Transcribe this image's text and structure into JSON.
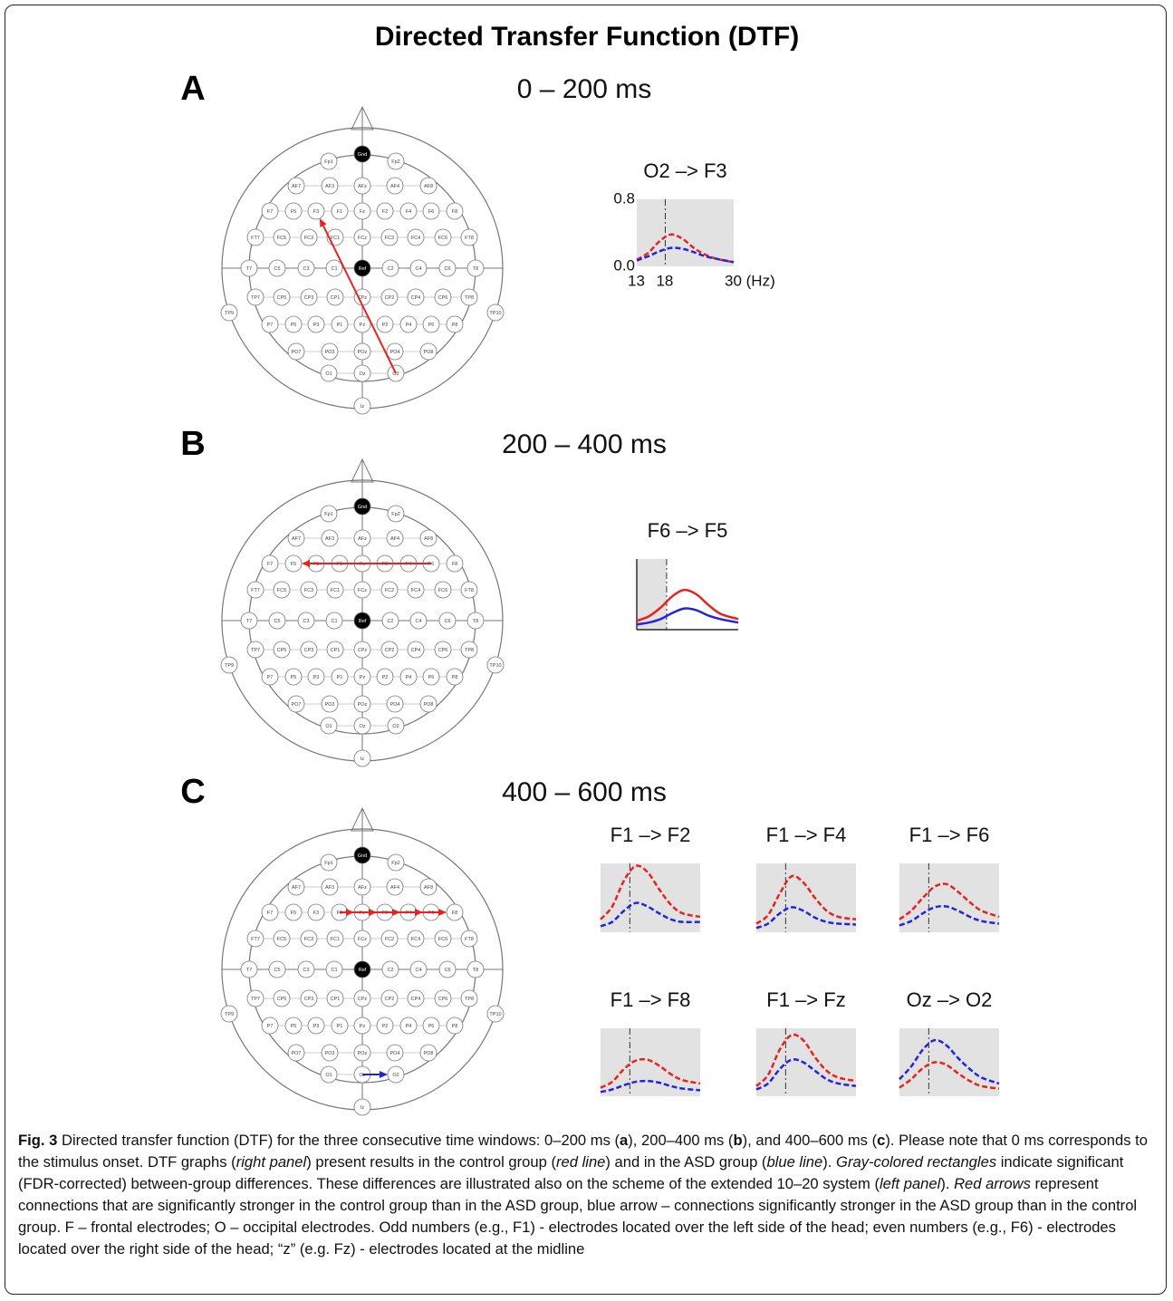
{
  "title": "Directed Transfer Function (DTF)",
  "montage": {
    "rows": [
      [
        "Gnd"
      ],
      [
        "Fp1",
        "Fp2"
      ],
      [
        "AF7",
        "AF3",
        "AFz",
        "AF4",
        "AF8"
      ],
      [
        "F7",
        "F5",
        "F3",
        "F1",
        "Fz",
        "F2",
        "F4",
        "F6",
        "F8"
      ],
      [
        "FT7",
        "FC5",
        "FC3",
        "FC1",
        "FCz",
        "FC2",
        "FC4",
        "FC6",
        "FT8"
      ],
      [
        "T7",
        "C5",
        "C3",
        "C1",
        "Ref",
        "C2",
        "C4",
        "C6",
        "T8"
      ],
      [
        "TP7",
        "CP5",
        "CP3",
        "CP1",
        "CPz",
        "CP2",
        "CP4",
        "CP6",
        "TP8"
      ],
      [
        "TP9",
        "TP10"
      ],
      [
        "P7",
        "P5",
        "P3",
        "P1",
        "Pz",
        "P2",
        "P4",
        "P6",
        "P8"
      ],
      [
        "PO7",
        "PO3",
        "POz",
        "PO4",
        "PO8"
      ],
      [
        "O1",
        "Oz",
        "O2"
      ],
      [
        "Iz"
      ]
    ],
    "filled": [
      "Gnd",
      "Ref"
    ]
  },
  "panels": [
    {
      "letter": "A",
      "window": "0 – 200 ms",
      "arrows": [
        {
          "from": "O2",
          "to": "F3",
          "color": "#e8231f"
        }
      ],
      "graphs": [
        {
          "type": "line",
          "title": "O2 –> F3",
          "x": [
            13,
            15,
            17,
            19,
            21,
            23,
            25,
            27,
            30
          ],
          "xlim": [
            13,
            30
          ],
          "ylim": [
            0,
            0.8
          ],
          "xticks": [
            13,
            18,
            {
              "value": 30,
              "label": "30 (Hz)"
            }
          ],
          "yticks": [
            0.8,
            {
              "value": 0,
              "label": "0.0"
            }
          ],
          "shade": [
            13,
            30
          ],
          "marker_x": 18,
          "line_style": "dashed",
          "frame": false,
          "series": [
            {
              "color": "#e8231f",
              "values": [
                0.08,
                0.16,
                0.3,
                0.38,
                0.33,
                0.22,
                0.14,
                0.09,
                0.05
              ]
            },
            {
              "color": "#2323e0",
              "values": [
                0.07,
                0.12,
                0.18,
                0.22,
                0.21,
                0.17,
                0.12,
                0.09,
                0.05
              ]
            }
          ]
        }
      ]
    },
    {
      "letter": "B",
      "window": "200 – 400 ms",
      "arrows": [
        {
          "from": "F6",
          "to": "F5",
          "color": "#e8231f"
        }
      ],
      "graphs": [
        {
          "type": "line",
          "title": "F6 –> F5",
          "x": [
            13,
            15,
            17,
            19,
            21,
            23,
            25,
            27,
            30
          ],
          "xlim": [
            13,
            30
          ],
          "ylim": [
            0,
            0.8
          ],
          "shade": [
            13,
            18
          ],
          "marker_x": 18,
          "line_style": "solid",
          "frame": true,
          "series": [
            {
              "color": "#e8231f",
              "values": [
                0.1,
                0.15,
                0.25,
                0.38,
                0.45,
                0.4,
                0.28,
                0.18,
                0.12
              ]
            },
            {
              "color": "#2323e0",
              "values": [
                0.06,
                0.08,
                0.12,
                0.19,
                0.24,
                0.22,
                0.16,
                0.12,
                0.08
              ]
            }
          ]
        }
      ]
    },
    {
      "letter": "C",
      "window": "400 – 600 ms",
      "arrows": [
        {
          "from": "F1",
          "to": "F2",
          "color": "#e8231f"
        },
        {
          "from": "F1",
          "to": "F4",
          "color": "#e8231f"
        },
        {
          "from": "F1",
          "to": "F6",
          "color": "#e8231f"
        },
        {
          "from": "F1",
          "to": "F8",
          "color": "#e8231f"
        },
        {
          "from": "F1",
          "to": "Fz",
          "color": "#e8231f"
        },
        {
          "from": "Oz",
          "to": "O2",
          "color": "#2323e0"
        }
      ],
      "graphs": [
        {
          "type": "line",
          "title": "F1 –> F2",
          "x": [
            13,
            15,
            17,
            19,
            21,
            23,
            25,
            27,
            30
          ],
          "xlim": [
            13,
            30
          ],
          "ylim": [
            0,
            0.8
          ],
          "shade": [
            13,
            30
          ],
          "marker_x": 18,
          "line_style": "dashed",
          "frame": false,
          "series": [
            {
              "color": "#e8231f",
              "values": [
                0.15,
                0.3,
                0.6,
                0.77,
                0.7,
                0.5,
                0.32,
                0.22,
                0.18
              ]
            },
            {
              "color": "#2323e0",
              "values": [
                0.07,
                0.12,
                0.25,
                0.34,
                0.3,
                0.22,
                0.15,
                0.12,
                0.12
              ]
            }
          ]
        },
        {
          "type": "line",
          "title": "F1 –> F4",
          "x": [
            13,
            15,
            17,
            19,
            21,
            23,
            25,
            27,
            30
          ],
          "xlim": [
            13,
            30
          ],
          "ylim": [
            0,
            0.8
          ],
          "shade": [
            13,
            30
          ],
          "marker_x": 18,
          "line_style": "dashed",
          "frame": false,
          "series": [
            {
              "color": "#e8231f",
              "values": [
                0.1,
                0.2,
                0.45,
                0.65,
                0.58,
                0.4,
                0.25,
                0.18,
                0.15
              ]
            },
            {
              "color": "#2323e0",
              "values": [
                0.05,
                0.1,
                0.22,
                0.29,
                0.25,
                0.17,
                0.12,
                0.1,
                0.09
              ]
            }
          ]
        },
        {
          "type": "line",
          "title": "F1 –> F6",
          "x": [
            13,
            15,
            17,
            19,
            21,
            23,
            25,
            27,
            30
          ],
          "xlim": [
            13,
            30
          ],
          "ylim": [
            0,
            0.8
          ],
          "shade": [
            13,
            30
          ],
          "marker_x": 18,
          "line_style": "dashed",
          "frame": false,
          "series": [
            {
              "color": "#e8231f",
              "values": [
                0.15,
                0.25,
                0.4,
                0.53,
                0.56,
                0.47,
                0.35,
                0.25,
                0.18
              ]
            },
            {
              "color": "#2323e0",
              "values": [
                0.08,
                0.13,
                0.22,
                0.29,
                0.3,
                0.25,
                0.18,
                0.13,
                0.1
              ]
            }
          ]
        },
        {
          "type": "line",
          "title": "F1 –> F8",
          "x": [
            13,
            15,
            17,
            19,
            21,
            23,
            25,
            27,
            30
          ],
          "xlim": [
            13,
            30
          ],
          "ylim": [
            0,
            0.8
          ],
          "shade": [
            13,
            30
          ],
          "marker_x": 18,
          "line_style": "dashed",
          "frame": false,
          "series": [
            {
              "color": "#e8231f",
              "values": [
                0.1,
                0.17,
                0.32,
                0.42,
                0.43,
                0.36,
                0.26,
                0.19,
                0.15
              ]
            },
            {
              "color": "#2323e0",
              "values": [
                0.05,
                0.08,
                0.13,
                0.17,
                0.18,
                0.16,
                0.12,
                0.09,
                0.07
              ]
            }
          ]
        },
        {
          "type": "line",
          "title": "F1 –> Fz",
          "x": [
            13,
            15,
            17,
            19,
            21,
            23,
            25,
            27,
            30
          ],
          "xlim": [
            13,
            30
          ],
          "ylim": [
            0,
            0.8
          ],
          "shade": [
            13,
            30
          ],
          "marker_x": 18,
          "line_style": "dashed",
          "frame": false,
          "series": [
            {
              "color": "#e8231f",
              "values": [
                0.12,
                0.25,
                0.55,
                0.72,
                0.66,
                0.46,
                0.3,
                0.22,
                0.18
              ]
            },
            {
              "color": "#2323e0",
              "values": [
                0.08,
                0.15,
                0.32,
                0.43,
                0.4,
                0.3,
                0.2,
                0.15,
                0.12
              ]
            }
          ]
        },
        {
          "type": "line",
          "title": "Oz –> O2",
          "x": [
            13,
            15,
            17,
            19,
            21,
            23,
            25,
            27,
            30
          ],
          "xlim": [
            13,
            30
          ],
          "ylim": [
            0,
            0.8
          ],
          "shade": [
            13,
            30
          ],
          "marker_x": 18,
          "line_style": "dashed",
          "frame": false,
          "series": [
            {
              "color": "#2323e0",
              "values": [
                0.2,
                0.35,
                0.55,
                0.66,
                0.6,
                0.45,
                0.32,
                0.22,
                0.15
              ]
            },
            {
              "color": "#e8231f",
              "values": [
                0.1,
                0.2,
                0.33,
                0.4,
                0.37,
                0.27,
                0.18,
                0.12,
                0.09
              ]
            }
          ]
        }
      ]
    }
  ],
  "caption": [
    {
      "text": "Fig. 3",
      "style": "bold"
    },
    {
      "text": " Directed transfer function (DTF) for the three consecutive time windows: 0–200 ms (",
      "style": "normal"
    },
    {
      "text": "a",
      "style": "bold"
    },
    {
      "text": "), 200–400 ms (",
      "style": "normal"
    },
    {
      "text": "b",
      "style": "bold"
    },
    {
      "text": "), and 400–600 ms (",
      "style": "normal"
    },
    {
      "text": "c",
      "style": "bold"
    },
    {
      "text": "). Please note that 0 ms corresponds to the stimulus onset. DTF graphs (",
      "style": "normal"
    },
    {
      "text": "right panel",
      "style": "italic"
    },
    {
      "text": ") present results in the control group (",
      "style": "normal"
    },
    {
      "text": "red line",
      "style": "italic"
    },
    {
      "text": ") and in the ASD group (",
      "style": "normal"
    },
    {
      "text": "blue line",
      "style": "italic"
    },
    {
      "text": "). ",
      "style": "normal"
    },
    {
      "text": "Gray-colored rectangles",
      "style": "italic"
    },
    {
      "text": " indicate significant (FDR-corrected) between-group differences. These differences are illustrated also on the scheme of the extended 10–20 system (",
      "style": "normal"
    },
    {
      "text": "left panel",
      "style": "italic"
    },
    {
      "text": "). ",
      "style": "normal"
    },
    {
      "text": "Red arrows",
      "style": "italic"
    },
    {
      "text": " represent connections that are significantly stronger in the control group than in the ASD group, blue arrow – connections significantly stronger in the ASD group than in the control group. F – frontal electrodes; O – occipital electrodes. Odd numbers (e.g., F1) - electrodes located over the left side of the head; even numbers (e.g., F6) - electrodes located over the right side of the head; “z” (e.g. Fz) - electrodes located at the midline",
      "style": "normal"
    }
  ]
}
